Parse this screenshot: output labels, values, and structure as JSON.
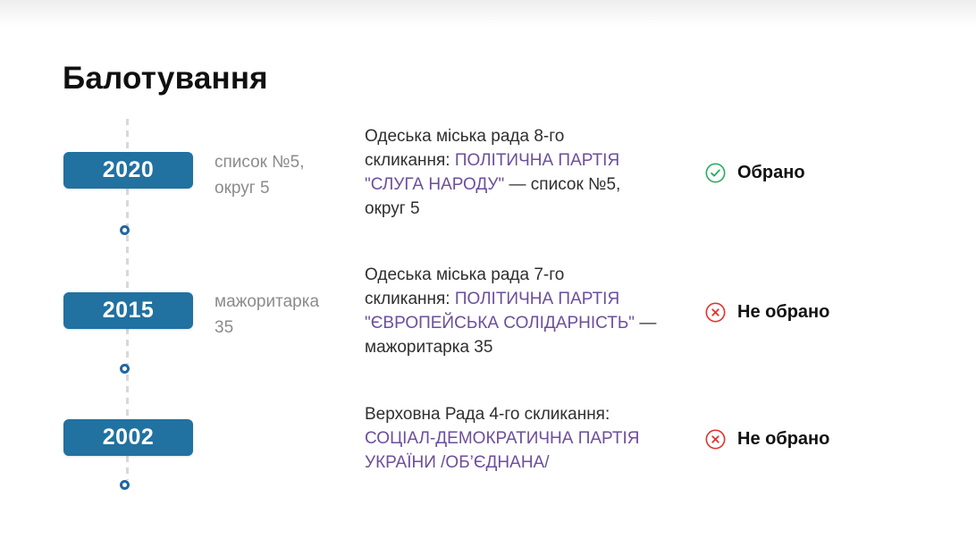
{
  "page": {
    "title": "Балотування"
  },
  "colors": {
    "gradient_top": "#eeeeef",
    "heading": "#101010",
    "badge": "#2171a1",
    "node": "#2166a3",
    "line": "#d8d8d8",
    "text": "#2f2f2f",
    "muted": "#8b8b8b",
    "party": "#6c4e9d",
    "elected": "#27ae60",
    "not_elected": "#e0342e",
    "status_text": "#111111"
  },
  "timeline": {
    "entries": [
      {
        "year": "2020",
        "qualifier": "список №5,\nокруг 5",
        "description": [
          {
            "style": "plain",
            "text": "Одеська міська рада 8-го\nскликання: "
          },
          {
            "style": "party",
            "text": "ПОЛІТИЧНА ПАРТІЯ\n\"СЛУГА НАРОДУ\""
          },
          {
            "style": "plain",
            "text": " — список №5,\nокруг 5"
          }
        ],
        "status": {
          "label": "Обрано",
          "result": "elected"
        }
      },
      {
        "year": "2015",
        "qualifier": "мажоритарка\n35",
        "description": [
          {
            "style": "plain",
            "text": "Одеська міська рада 7-го\nскликання: "
          },
          {
            "style": "party",
            "text": "ПОЛІТИЧНА ПАРТІЯ\n\"ЄВРОПЕЙСЬКА СОЛІДАРНІСТЬ\""
          },
          {
            "style": "plain",
            "text": " —\nмажоритарка 35"
          }
        ],
        "status": {
          "label": "Не обрано",
          "result": "not-elected"
        }
      },
      {
        "year": "2002",
        "qualifier": "",
        "description": [
          {
            "style": "plain",
            "text": "Верховна Рада 4-го скликання:\n"
          },
          {
            "style": "party",
            "text": "СОЦІАЛ-ДЕМОКРАТИЧНА ПАРТІЯ\nУКРАЇНИ /ОБ’ЄДНАНА/"
          }
        ],
        "status": {
          "label": "Не обрано",
          "result": "not-elected"
        }
      }
    ]
  }
}
